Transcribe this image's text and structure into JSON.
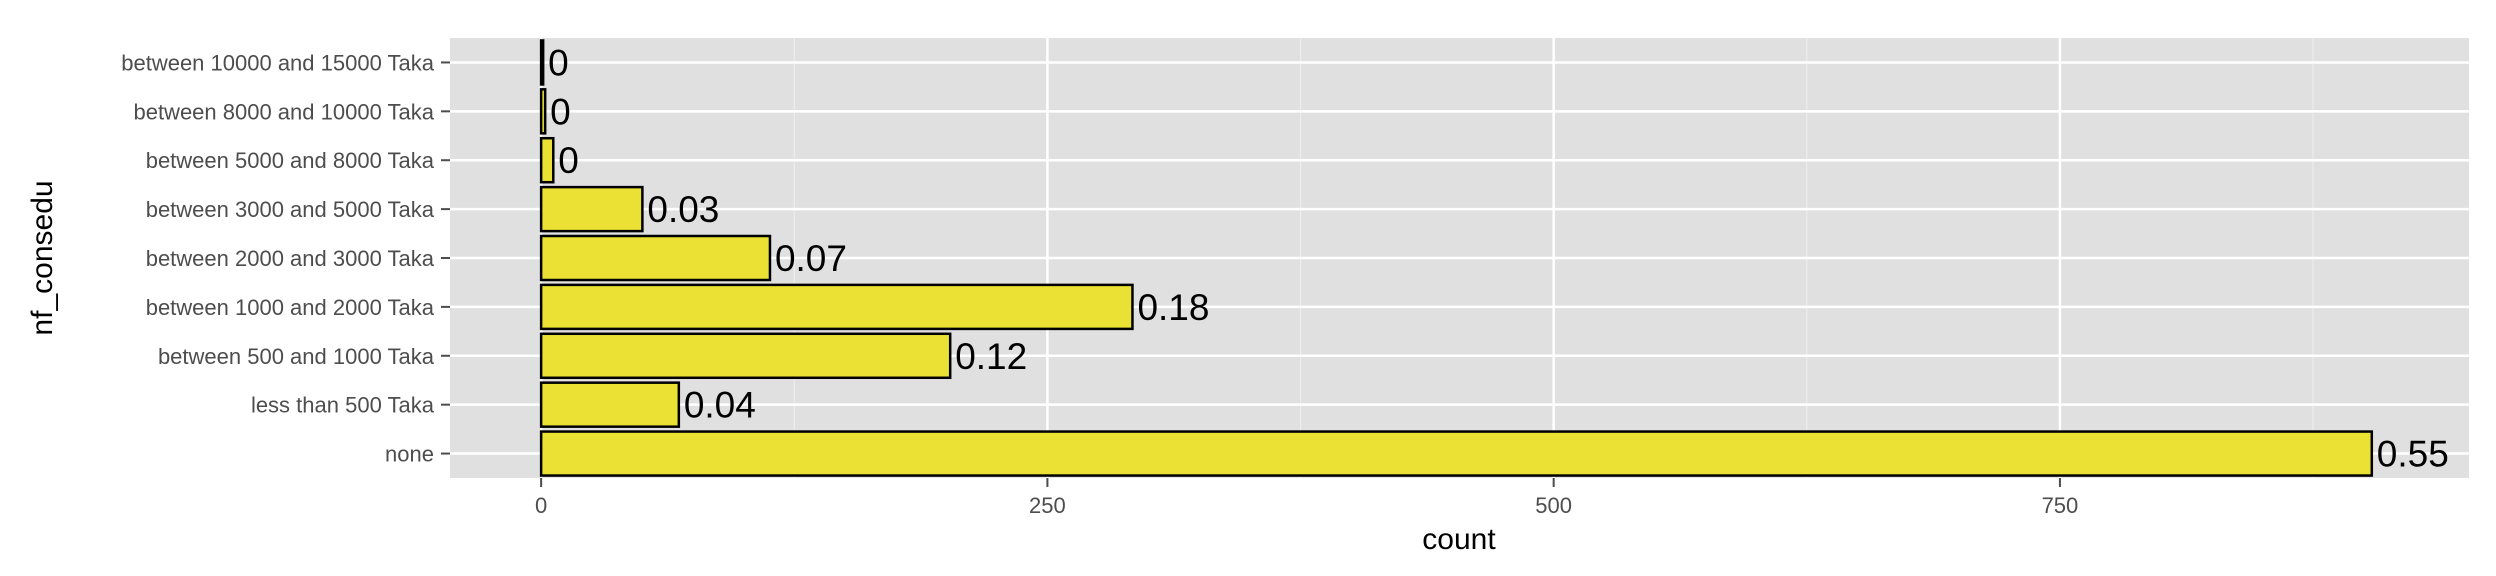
{
  "chart_data": {
    "type": "bar",
    "orientation": "horizontal",
    "categories": [
      "none",
      "less than 500 Taka",
      "between 500 and 1000 Taka",
      "between 1000 and 2000 Taka",
      "between 2000 and 3000 Taka",
      "between 3000 and 5000 Taka",
      "between 5000 and 8000 Taka",
      "between 8000 and 10000 Taka",
      "between 10000 and 15000 Taka"
    ],
    "values": [
      904,
      68,
      202,
      292,
      113,
      50,
      6,
      2,
      1
    ],
    "labels": [
      "0.55",
      "0.04",
      "0.12",
      "0.18",
      "0.07",
      "0.03",
      "0",
      "0",
      "0"
    ],
    "title": "",
    "xlabel": "count",
    "ylabel": "nf_consedu",
    "xlim": [
      -45,
      952
    ],
    "xticks": [
      0,
      250,
      500,
      750
    ],
    "grid": true,
    "legend": "none",
    "colors": {
      "bar_fill": "#ebe134",
      "bar_stroke": "#000000",
      "panel_bg": "#e0e0e0",
      "grid_major": "#ffffff",
      "grid_minor": "#ededed"
    }
  }
}
